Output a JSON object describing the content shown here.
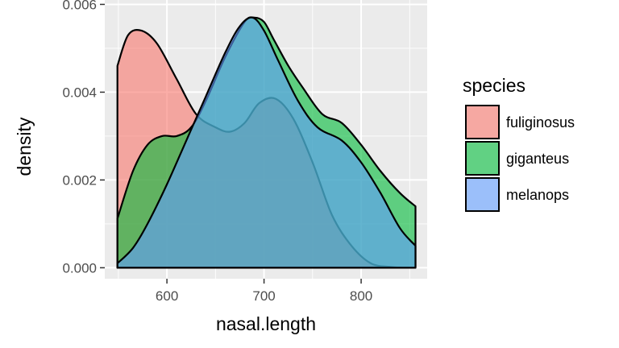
{
  "chart_data": {
    "type": "area",
    "title": "",
    "xlabel": "nasal.length",
    "ylabel": "density",
    "xlim": [
      536,
      868
    ],
    "ylim": [
      -0.00025,
      0.0061
    ],
    "x_ticks": [
      600,
      700,
      800
    ],
    "x_tick_labels": [
      "600",
      "700",
      "800"
    ],
    "y_ticks": [
      0,
      0.002,
      0.004,
      0.006
    ],
    "y_tick_labels": [
      "0.000",
      "0.002",
      "0.004",
      "0.006"
    ],
    "grid": true,
    "legend": {
      "title": "species",
      "placement": "right"
    },
    "series": [
      {
        "name": "fuliginosus",
        "color": "#F8766D",
        "x": [
          549,
          560,
          574,
          590,
          610,
          630,
          650,
          665,
          680,
          695,
          712,
          730,
          750,
          770,
          790,
          810,
          830,
          842
        ],
        "y": [
          0.0046,
          0.0053,
          0.0054,
          0.0051,
          0.0043,
          0.0035,
          0.0032,
          0.0031,
          0.0033,
          0.00375,
          0.00385,
          0.0034,
          0.0024,
          0.0012,
          0.0005,
          0.0001,
          2e-05,
          0.0
        ]
      },
      {
        "name": "giganteus",
        "color": "#00BA38",
        "x": [
          549,
          565,
          580,
          595,
          610,
          625,
          640,
          660,
          680,
          690,
          700,
          710,
          725,
          740,
          760,
          780,
          800,
          820,
          840,
          856
        ],
        "y": [
          0.00112,
          0.0022,
          0.0028,
          0.003,
          0.003,
          0.0032,
          0.0038,
          0.0048,
          0.0056,
          0.0057,
          0.0056,
          0.0052,
          0.0046,
          0.0041,
          0.0035,
          0.0033,
          0.0028,
          0.0022,
          0.0017,
          0.0014
        ]
      },
      {
        "name": "melanops",
        "color": "#619CFF",
        "x": [
          549,
          565,
          580,
          600,
          620,
          640,
          660,
          675,
          688,
          700,
          715,
          735,
          755,
          780,
          800,
          820,
          840,
          856
        ],
        "y": [
          0.0001,
          0.00045,
          0.001,
          0.0019,
          0.0029,
          0.0039,
          0.0049,
          0.0055,
          0.0057,
          0.0054,
          0.0047,
          0.0038,
          0.0032,
          0.0029,
          0.0024,
          0.0017,
          0.0009,
          0.0005
        ]
      }
    ]
  }
}
